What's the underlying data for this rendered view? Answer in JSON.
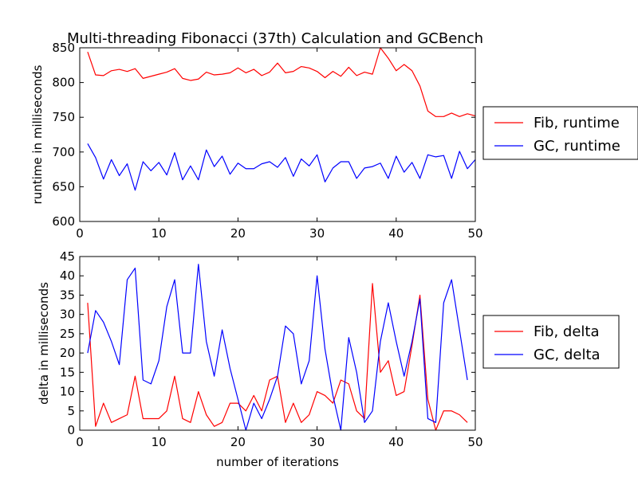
{
  "title": "Multi-threading Fibonacci (37th) Calculation and GCBench",
  "xlabel": "number of iterations",
  "chart_data": [
    {
      "type": "line",
      "ylabel": "runtime in milliseconds",
      "xlim": [
        0,
        50
      ],
      "ylim": [
        600,
        850
      ],
      "xticks": [
        0,
        10,
        20,
        30,
        40,
        50
      ],
      "yticks": [
        600,
        650,
        700,
        750,
        800,
        850
      ],
      "legend_position": "right",
      "series": [
        {
          "name": "Fib, runtime",
          "color": "#ff0000",
          "x": [
            1,
            2,
            3,
            4,
            5,
            6,
            7,
            8,
            9,
            10,
            11,
            12,
            13,
            14,
            15,
            16,
            17,
            18,
            19,
            20,
            21,
            22,
            23,
            24,
            25,
            26,
            27,
            28,
            29,
            30,
            31,
            32,
            33,
            34,
            35,
            36,
            37,
            38,
            39,
            40,
            41,
            42,
            43,
            44,
            45,
            46,
            47,
            48,
            49,
            50
          ],
          "values": [
            844,
            811,
            810,
            817,
            819,
            816,
            820,
            806,
            809,
            812,
            815,
            820,
            806,
            803,
            805,
            815,
            811,
            812,
            814,
            821,
            814,
            819,
            810,
            815,
            828,
            814,
            816,
            823,
            821,
            816,
            807,
            816,
            809,
            822,
            810,
            815,
            812,
            850,
            835,
            817,
            826,
            817,
            795,
            759,
            751,
            751,
            756,
            751,
            755,
            752
          ]
        },
        {
          "name": "GC, runtime",
          "color": "#0000ff",
          "x": [
            1,
            2,
            3,
            4,
            5,
            6,
            7,
            8,
            9,
            10,
            11,
            12,
            13,
            14,
            15,
            16,
            17,
            18,
            19,
            20,
            21,
            22,
            23,
            24,
            25,
            26,
            27,
            28,
            29,
            30,
            31,
            32,
            33,
            34,
            35,
            36,
            37,
            38,
            39,
            40,
            41,
            42,
            43,
            44,
            45,
            46,
            47,
            48,
            49,
            50
          ],
          "values": [
            712,
            692,
            661,
            689,
            666,
            683,
            645,
            686,
            673,
            685,
            667,
            699,
            660,
            680,
            660,
            703,
            679,
            694,
            668,
            684,
            676,
            676,
            683,
            686,
            678,
            692,
            665,
            690,
            680,
            696,
            657,
            677,
            686,
            686,
            662,
            677,
            679,
            684,
            662,
            694,
            671,
            685,
            662,
            696,
            693,
            695,
            662,
            701,
            676,
            689
          ]
        }
      ]
    },
    {
      "type": "line",
      "ylabel": "delta in milliseconds",
      "xlim": [
        0,
        50
      ],
      "ylim": [
        0,
        45
      ],
      "xticks": [
        0,
        10,
        20,
        30,
        40,
        50
      ],
      "yticks": [
        0,
        5,
        10,
        15,
        20,
        25,
        30,
        35,
        40,
        45
      ],
      "legend_position": "right",
      "series": [
        {
          "name": "Fib, delta",
          "color": "#ff0000",
          "x": [
            1,
            2,
            3,
            4,
            5,
            6,
            7,
            8,
            9,
            10,
            11,
            12,
            13,
            14,
            15,
            16,
            17,
            18,
            19,
            20,
            21,
            22,
            23,
            24,
            25,
            26,
            27,
            28,
            29,
            30,
            31,
            32,
            33,
            34,
            35,
            36,
            37,
            38,
            39,
            40,
            41,
            42,
            43,
            44,
            45,
            46,
            47,
            48,
            49
          ],
          "values": [
            33,
            1,
            7,
            2,
            3,
            4,
            14,
            3,
            3,
            3,
            5,
            14,
            3,
            2,
            10,
            4,
            1,
            2,
            7,
            7,
            5,
            9,
            5,
            13,
            14,
            2,
            7,
            2,
            4,
            10,
            9,
            7,
            13,
            12,
            5,
            3,
            38,
            15,
            18,
            9,
            10,
            22,
            35,
            8,
            0,
            5,
            5,
            4,
            2
          ]
        },
        {
          "name": "GC, delta",
          "color": "#0000ff",
          "x": [
            1,
            2,
            3,
            4,
            5,
            6,
            7,
            8,
            9,
            10,
            11,
            12,
            13,
            14,
            15,
            16,
            17,
            18,
            19,
            20,
            21,
            22,
            23,
            24,
            25,
            26,
            27,
            28,
            29,
            30,
            31,
            32,
            33,
            34,
            35,
            36,
            37,
            38,
            39,
            40,
            41,
            42,
            43,
            44,
            45,
            46,
            47,
            48,
            49
          ],
          "values": [
            20,
            31,
            28,
            23,
            17,
            39,
            42,
            13,
            12,
            18,
            32,
            39,
            20,
            20,
            43,
            23,
            14,
            26,
            16,
            8,
            0,
            7,
            3,
            8,
            14,
            27,
            25,
            12,
            18,
            40,
            21,
            9,
            0,
            24,
            15,
            2,
            5,
            23,
            33,
            23,
            14,
            23,
            34,
            3,
            2,
            33,
            39,
            26,
            13
          ]
        }
      ]
    }
  ]
}
